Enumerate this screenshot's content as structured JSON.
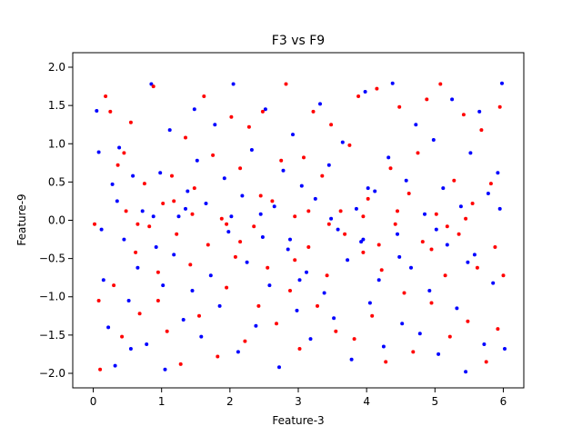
{
  "chart_data": {
    "type": "scatter",
    "title": "F3 vs F9",
    "xlabel": "Feature-3",
    "ylabel": "Feature-9",
    "xlim": [
      -0.3,
      6.3
    ],
    "ylim": [
      -2.19,
      2.19
    ],
    "xticks": [
      "0",
      "1",
      "2",
      "3",
      "4",
      "5",
      "6"
    ],
    "yticks": [
      "2.0",
      "1.5",
      "1.0",
      "0.5",
      "0.0",
      "−0.5",
      "−1.0",
      "−1.5",
      "−2.0"
    ],
    "grid": false,
    "series": [
      {
        "color": "#0000ff",
        "points": [
          [
            0.05,
            1.43
          ],
          [
            0.08,
            0.89
          ],
          [
            0.15,
            -0.78
          ],
          [
            0.22,
            -1.4
          ],
          [
            0.28,
            0.47
          ],
          [
            0.32,
            -1.9
          ],
          [
            0.38,
            0.95
          ],
          [
            0.45,
            -0.25
          ],
          [
            0.52,
            -1.05
          ],
          [
            0.58,
            0.58
          ],
          [
            0.65,
            -0.62
          ],
          [
            0.72,
            0.12
          ],
          [
            0.78,
            -1.62
          ],
          [
            0.85,
            1.78
          ],
          [
            0.92,
            -0.35
          ],
          [
            0.98,
            0.62
          ],
          [
            1.05,
            -1.95
          ],
          [
            1.12,
            1.18
          ],
          [
            1.18,
            -0.45
          ],
          [
            1.25,
            0.05
          ],
          [
            1.32,
            -1.3
          ],
          [
            1.38,
            0.38
          ],
          [
            1.45,
            -0.92
          ],
          [
            1.52,
            0.78
          ],
          [
            1.58,
            -1.52
          ],
          [
            1.65,
            0.22
          ],
          [
            1.72,
            -0.72
          ],
          [
            1.78,
            1.25
          ],
          [
            1.85,
            -1.12
          ],
          [
            1.92,
            0.55
          ],
          [
            1.98,
            -0.15
          ],
          [
            2.05,
            1.78
          ],
          [
            2.12,
            -1.72
          ],
          [
            2.18,
            0.32
          ],
          [
            2.25,
            -0.55
          ],
          [
            2.32,
            0.92
          ],
          [
            2.38,
            -1.38
          ],
          [
            2.45,
            0.08
          ],
          [
            2.52,
            1.45
          ],
          [
            2.58,
            -0.85
          ],
          [
            2.65,
            0.18
          ],
          [
            2.72,
            -1.92
          ],
          [
            2.78,
            0.65
          ],
          [
            2.85,
            -0.38
          ],
          [
            2.92,
            1.12
          ],
          [
            2.98,
            -1.18
          ],
          [
            3.05,
            0.45
          ],
          [
            3.12,
            -0.68
          ],
          [
            3.18,
            -1.55
          ],
          [
            3.25,
            0.28
          ],
          [
            3.32,
            1.52
          ],
          [
            3.38,
            -0.95
          ],
          [
            3.45,
            0.72
          ],
          [
            3.52,
            -1.28
          ],
          [
            3.58,
            -0.12
          ],
          [
            3.65,
            1.02
          ],
          [
            3.72,
            -0.52
          ],
          [
            3.78,
            -1.82
          ],
          [
            3.85,
            0.15
          ],
          [
            3.92,
            -0.28
          ],
          [
            3.98,
            1.68
          ],
          [
            4.05,
            -1.08
          ],
          [
            4.12,
            0.38
          ],
          [
            4.18,
            -0.78
          ],
          [
            4.25,
            -1.65
          ],
          [
            4.32,
            0.82
          ],
          [
            4.38,
            1.79
          ],
          [
            4.45,
            -0.18
          ],
          [
            4.52,
            -1.35
          ],
          [
            4.58,
            0.52
          ],
          [
            4.65,
            -0.62
          ],
          [
            4.72,
            1.25
          ],
          [
            4.78,
            -1.48
          ],
          [
            4.85,
            0.08
          ],
          [
            4.92,
            -0.92
          ],
          [
            4.98,
            1.05
          ],
          [
            5.05,
            -1.75
          ],
          [
            5.12,
            0.42
          ],
          [
            5.18,
            -0.32
          ],
          [
            5.25,
            1.58
          ],
          [
            5.32,
            -1.15
          ],
          [
            5.38,
            0.18
          ],
          [
            5.45,
            -1.98
          ],
          [
            5.52,
            0.88
          ],
          [
            5.58,
            -0.45
          ],
          [
            5.65,
            1.42
          ],
          [
            5.72,
            -1.62
          ],
          [
            5.78,
            0.35
          ],
          [
            5.85,
            -0.82
          ],
          [
            5.92,
            0.62
          ],
          [
            5.98,
            1.79
          ],
          [
            6.02,
            -1.68
          ],
          [
            0.12,
            -0.12
          ],
          [
            0.55,
            -1.68
          ],
          [
            1.02,
            -0.85
          ],
          [
            1.48,
            1.45
          ],
          [
            2.02,
            0.05
          ],
          [
            2.48,
            -0.22
          ],
          [
            3.02,
            -0.78
          ],
          [
            3.48,
            0.02
          ],
          [
            4.02,
            0.42
          ],
          [
            4.48,
            -0.48
          ],
          [
            5.02,
            -0.12
          ],
          [
            5.48,
            -0.55
          ],
          [
            5.95,
            0.15
          ],
          [
            0.35,
            0.25
          ],
          [
            0.88,
            0.05
          ],
          [
            1.35,
            0.15
          ],
          [
            2.88,
            -0.25
          ],
          [
            3.95,
            -0.25
          ]
        ]
      },
      {
        "color": "#ff0000",
        "points": [
          [
            0.02,
            -0.05
          ],
          [
            0.1,
            -1.95
          ],
          [
            0.18,
            1.62
          ],
          [
            0.25,
            1.42
          ],
          [
            0.3,
            -0.85
          ],
          [
            0.36,
            0.72
          ],
          [
            0.42,
            -1.52
          ],
          [
            0.48,
            0.12
          ],
          [
            0.55,
            1.28
          ],
          [
            0.62,
            -0.42
          ],
          [
            0.68,
            -1.22
          ],
          [
            0.75,
            0.48
          ],
          [
            0.82,
            -0.08
          ],
          [
            0.88,
            1.75
          ],
          [
            0.95,
            -0.68
          ],
          [
            1.02,
            0.22
          ],
          [
            1.08,
            -1.45
          ],
          [
            1.15,
            0.58
          ],
          [
            1.22,
            -0.18
          ],
          [
            1.28,
            -1.88
          ],
          [
            1.35,
            1.08
          ],
          [
            1.42,
            -0.58
          ],
          [
            1.48,
            0.42
          ],
          [
            1.55,
            -1.25
          ],
          [
            1.62,
            1.62
          ],
          [
            1.68,
            -0.32
          ],
          [
            1.75,
            0.85
          ],
          [
            1.82,
            -1.78
          ],
          [
            1.88,
            0.02
          ],
          [
            1.95,
            -0.88
          ],
          [
            2.02,
            1.35
          ],
          [
            2.08,
            -0.48
          ],
          [
            2.15,
            0.68
          ],
          [
            2.22,
            -1.58
          ],
          [
            2.28,
            1.22
          ],
          [
            2.35,
            -0.08
          ],
          [
            2.42,
            -1.12
          ],
          [
            2.48,
            1.42
          ],
          [
            2.55,
            -0.62
          ],
          [
            2.62,
            0.25
          ],
          [
            2.68,
            -1.35
          ],
          [
            2.75,
            0.78
          ],
          [
            2.82,
            1.78
          ],
          [
            2.88,
            -0.92
          ],
          [
            2.95,
            0.05
          ],
          [
            3.02,
            -1.68
          ],
          [
            3.08,
            0.82
          ],
          [
            3.15,
            -0.35
          ],
          [
            3.22,
            1.42
          ],
          [
            3.28,
            -1.12
          ],
          [
            3.35,
            0.58
          ],
          [
            3.42,
            -0.72
          ],
          [
            3.48,
            1.25
          ],
          [
            3.55,
            -1.45
          ],
          [
            3.62,
            0.12
          ],
          [
            3.68,
            -0.18
          ],
          [
            3.75,
            0.98
          ],
          [
            3.82,
            -1.55
          ],
          [
            3.88,
            1.62
          ],
          [
            3.95,
            -0.42
          ],
          [
            4.02,
            0.28
          ],
          [
            4.08,
            -1.25
          ],
          [
            4.15,
            1.72
          ],
          [
            4.22,
            -0.65
          ],
          [
            4.28,
            -1.85
          ],
          [
            4.35,
            0.68
          ],
          [
            4.42,
            -0.05
          ],
          [
            4.48,
            1.48
          ],
          [
            4.55,
            -0.95
          ],
          [
            4.62,
            0.35
          ],
          [
            4.68,
            -1.72
          ],
          [
            4.75,
            0.88
          ],
          [
            4.82,
            -0.28
          ],
          [
            4.88,
            1.58
          ],
          [
            4.95,
            -1.08
          ],
          [
            5.02,
            0.08
          ],
          [
            5.08,
            1.78
          ],
          [
            5.15,
            -0.72
          ],
          [
            5.22,
            -1.52
          ],
          [
            5.28,
            0.52
          ],
          [
            5.35,
            -0.18
          ],
          [
            5.42,
            1.38
          ],
          [
            5.48,
            -1.32
          ],
          [
            5.55,
            0.22
          ],
          [
            5.62,
            -0.62
          ],
          [
            5.68,
            1.18
          ],
          [
            5.75,
            -1.85
          ],
          [
            5.82,
            0.48
          ],
          [
            5.88,
            -0.35
          ],
          [
            5.95,
            1.48
          ],
          [
            6.0,
            -0.72
          ],
          [
            0.08,
            -1.05
          ],
          [
            0.45,
            0.88
          ],
          [
            0.95,
            -1.05
          ],
          [
            1.45,
            0.08
          ],
          [
            1.95,
            -0.05
          ],
          [
            2.45,
            0.32
          ],
          [
            2.95,
            -0.52
          ],
          [
            3.45,
            -0.05
          ],
          [
            3.95,
            0.05
          ],
          [
            4.45,
            0.12
          ],
          [
            4.95,
            -0.38
          ],
          [
            5.45,
            0.02
          ],
          [
            5.92,
            -1.42
          ],
          [
            0.65,
            -0.05
          ],
          [
            1.18,
            0.25
          ],
          [
            2.15,
            -0.28
          ],
          [
            3.15,
            0.12
          ],
          [
            4.18,
            -0.32
          ],
          [
            5.18,
            -0.08
          ]
        ]
      }
    ]
  }
}
